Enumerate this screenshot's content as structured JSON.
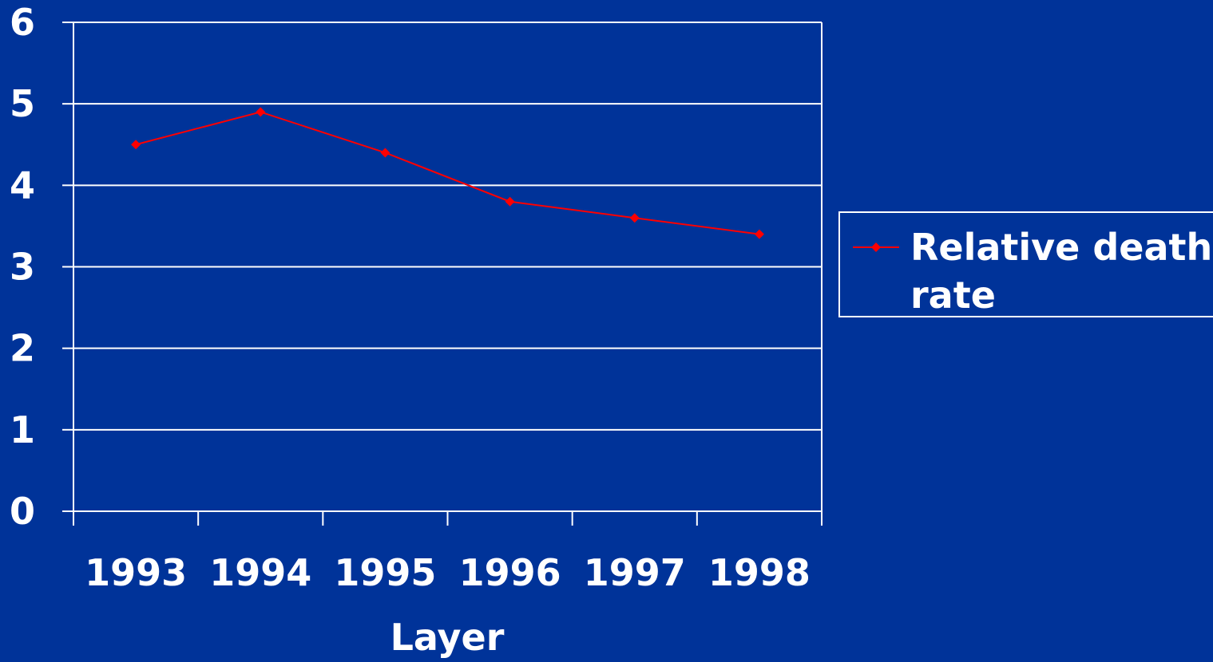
{
  "colors": {
    "background": "#003399",
    "axis_and_grid": "#ffffff",
    "series_line": "#ff0000"
  },
  "chart_data": {
    "type": "line",
    "title": "",
    "xlabel": "Layer",
    "ylabel": "",
    "categories": [
      "1993",
      "1994",
      "1995",
      "1996",
      "1997",
      "1998"
    ],
    "y_ticks": [
      "0",
      "1",
      "2",
      "3",
      "4",
      "5",
      "6"
    ],
    "ylim": [
      0,
      6
    ],
    "grid": true,
    "legend_position": "right",
    "series": [
      {
        "name": "Relative death rate",
        "marker": "diamond",
        "values": [
          4.5,
          4.9,
          4.4,
          3.8,
          3.6,
          3.4
        ]
      }
    ]
  }
}
